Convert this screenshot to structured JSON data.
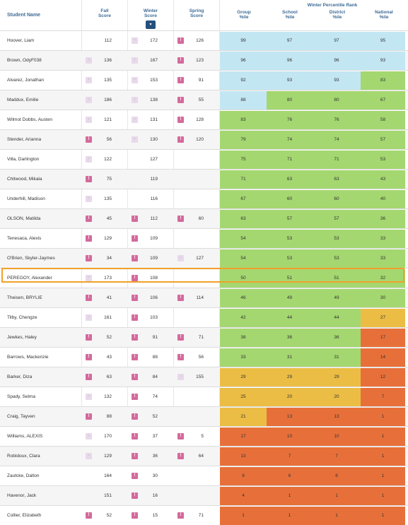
{
  "header": {
    "student_name": "Student Name",
    "fall": [
      "Fall",
      "Score"
    ],
    "winter": [
      "Winter",
      "Score"
    ],
    "spring": [
      "Spring",
      "Score"
    ],
    "percentile_group": "Winter Percentile Rank",
    "group": [
      "Group",
      "%ile"
    ],
    "school": [
      "School",
      "%ile"
    ],
    "district": [
      "District",
      "%ile"
    ],
    "national": [
      "National",
      "%ile"
    ],
    "sort_glyph": "▾"
  },
  "colors": {
    "blue": "#c3e6f3",
    "green": "#a4d770",
    "yellow": "#ecbd45",
    "orange": "#e7703a",
    "red": "#da5a2e",
    "highlight": "#f0a02b"
  },
  "students": [
    {
      "name": "Hoover, Liam",
      "fall_icon": "none",
      "fall": "112",
      "winter_icon": "light",
      "winter": "172",
      "spring_icon": "dark",
      "spring": "126",
      "group": "99",
      "school": "97",
      "district": "97",
      "national": "95",
      "c": [
        "blue",
        "blue",
        "blue",
        "blue"
      ]
    },
    {
      "name": "Brown, OdyF038",
      "fall_icon": "light",
      "fall": "136",
      "winter_icon": "light",
      "winter": "167",
      "spring_icon": "dark",
      "spring": "123",
      "group": "96",
      "school": "96",
      "district": "96",
      "national": "93",
      "c": [
        "blue",
        "blue",
        "blue",
        "blue"
      ]
    },
    {
      "name": "Alvarez, Jonathan",
      "fall_icon": "light",
      "fall": "135",
      "winter_icon": "light",
      "winter": "153",
      "spring_icon": "dark",
      "spring": "91",
      "group": "92",
      "school": "93",
      "district": "93",
      "national": "83",
      "c": [
        "blue",
        "blue",
        "blue",
        "green"
      ]
    },
    {
      "name": "Maddux, Emilie",
      "fall_icon": "light",
      "fall": "186",
      "winter_icon": "light",
      "winter": "138",
      "spring_icon": "dark",
      "spring": "55",
      "group": "88",
      "school": "80",
      "district": "80",
      "national": "67",
      "c": [
        "blue",
        "green",
        "green",
        "green"
      ]
    },
    {
      "name": "Wilmot Dobbs, Austen",
      "fall_icon": "light",
      "fall": "121",
      "winter_icon": "light",
      "winter": "131",
      "spring_icon": "dark",
      "spring": "128",
      "group": "83",
      "school": "76",
      "district": "76",
      "national": "58",
      "c": [
        "green",
        "green",
        "green",
        "green"
      ]
    },
    {
      "name": "Stender, Arianna",
      "fall_icon": "dark",
      "fall": "56",
      "winter_icon": "light",
      "winter": "130",
      "spring_icon": "dark",
      "spring": "120",
      "group": "79",
      "school": "74",
      "district": "74",
      "national": "57",
      "c": [
        "green",
        "green",
        "green",
        "green"
      ]
    },
    {
      "name": "Villa, Darlington",
      "fall_icon": "light",
      "fall": "122",
      "winter_icon": "none",
      "winter": "127",
      "spring_icon": "none",
      "spring": "",
      "group": "75",
      "school": "71",
      "district": "71",
      "national": "53",
      "c": [
        "green",
        "green",
        "green",
        "green"
      ]
    },
    {
      "name": "Chitwood, Mikala",
      "fall_icon": "dark",
      "fall": "75",
      "winter_icon": "none",
      "winter": "119",
      "spring_icon": "none",
      "spring": "",
      "group": "71",
      "school": "63",
      "district": "63",
      "national": "43",
      "c": [
        "green",
        "green",
        "green",
        "green"
      ]
    },
    {
      "name": "Underhill, Madison",
      "fall_icon": "light",
      "fall": "135",
      "winter_icon": "none",
      "winter": "116",
      "spring_icon": "none",
      "spring": "",
      "group": "67",
      "school": "60",
      "district": "60",
      "national": "40",
      "c": [
        "green",
        "green",
        "green",
        "green"
      ]
    },
    {
      "name": "OLSON, Matilda",
      "fall_icon": "dark",
      "fall": "45",
      "winter_icon": "dark",
      "winter": "112",
      "spring_icon": "dark",
      "spring": "60",
      "group": "63",
      "school": "57",
      "district": "57",
      "national": "36",
      "c": [
        "green",
        "green",
        "green",
        "green"
      ]
    },
    {
      "name": "Tenesaca, Alexis",
      "fall_icon": "dark",
      "fall": "129",
      "winter_icon": "dark",
      "winter": "109",
      "spring_icon": "none",
      "spring": "",
      "group": "54",
      "school": "53",
      "district": "53",
      "national": "33",
      "c": [
        "green",
        "green",
        "green",
        "green"
      ]
    },
    {
      "name": "O'Brien, Skyler-Jaymes",
      "fall_icon": "dark",
      "fall": "34",
      "winter_icon": "dark",
      "winter": "109",
      "spring_icon": "light",
      "spring": "127",
      "group": "54",
      "school": "53",
      "district": "53",
      "national": "33",
      "c": [
        "green",
        "green",
        "green",
        "green"
      ]
    },
    {
      "name": "PEREGOY, Alexander",
      "fall_icon": "light",
      "fall": "173",
      "winter_icon": "dark",
      "winter": "108",
      "spring_icon": "none",
      "spring": "",
      "group": "50",
      "school": "51",
      "district": "51",
      "national": "32",
      "c": [
        "green",
        "green",
        "green",
        "green"
      ]
    },
    {
      "name": "Theisen, BRYLIE",
      "fall_icon": "dark",
      "fall": "41",
      "winter_icon": "dark",
      "winter": "106",
      "spring_icon": "dark",
      "spring": "114",
      "group": "46",
      "school": "49",
      "district": "49",
      "national": "30",
      "c": [
        "green",
        "green",
        "green",
        "green"
      ]
    },
    {
      "name": "Tilby, Chengze",
      "fall_icon": "light",
      "fall": "161",
      "winter_icon": "dark",
      "winter": "103",
      "spring_icon": "none",
      "spring": "",
      "group": "42",
      "school": "44",
      "district": "44",
      "national": "27",
      "c": [
        "green",
        "green",
        "green",
        "yellow"
      ]
    },
    {
      "name": "Jewkes, Haley",
      "fall_icon": "dark",
      "fall": "52",
      "winter_icon": "dark",
      "winter": "91",
      "spring_icon": "dark",
      "spring": "71",
      "group": "38",
      "school": "36",
      "district": "36",
      "national": "17",
      "c": [
        "green",
        "green",
        "green",
        "orange"
      ]
    },
    {
      "name": "Barrows, Mackenzie",
      "fall_icon": "dark",
      "fall": "43",
      "winter_icon": "dark",
      "winter": "88",
      "spring_icon": "dark",
      "spring": "56",
      "group": "33",
      "school": "31",
      "district": "31",
      "national": "14",
      "c": [
        "green",
        "green",
        "green",
        "orange"
      ]
    },
    {
      "name": "Barker, Diza",
      "fall_icon": "dark",
      "fall": "63",
      "winter_icon": "dark",
      "winter": "84",
      "spring_icon": "light",
      "spring": "155",
      "group": "29",
      "school": "29",
      "district": "29",
      "national": "12",
      "c": [
        "yellow",
        "yellow",
        "yellow",
        "orange"
      ]
    },
    {
      "name": "Spady, Selma",
      "fall_icon": "light",
      "fall": "132",
      "winter_icon": "dark",
      "winter": "74",
      "spring_icon": "none",
      "spring": "",
      "group": "25",
      "school": "20",
      "district": "20",
      "national": "7",
      "c": [
        "yellow",
        "yellow",
        "yellow",
        "orange"
      ]
    },
    {
      "name": "Craig, Tayven",
      "fall_icon": "dark",
      "fall": "88",
      "winter_icon": "dark",
      "winter": "52",
      "spring_icon": "none",
      "spring": "",
      "group": "21",
      "school": "13",
      "district": "13",
      "national": "1",
      "c": [
        "yellow",
        "orange",
        "orange",
        "orange"
      ]
    },
    {
      "name": "Williams, ALEXIS",
      "fall_icon": "light",
      "fall": "170",
      "winter_icon": "dark",
      "winter": "37",
      "spring_icon": "dark",
      "spring": "5",
      "group": "17",
      "school": "10",
      "district": "10",
      "national": "1",
      "c": [
        "orange",
        "orange",
        "orange",
        "orange"
      ]
    },
    {
      "name": "Robidoux, Clara",
      "fall_icon": "light",
      "fall": "129",
      "winter_icon": "dark",
      "winter": "36",
      "spring_icon": "dark",
      "spring": "64",
      "group": "13",
      "school": "7",
      "district": "7",
      "national": "1",
      "c": [
        "orange",
        "orange",
        "orange",
        "orange"
      ]
    },
    {
      "name": "Zautcke, Dalton",
      "fall_icon": "none",
      "fall": "164",
      "winter_icon": "dark",
      "winter": "30",
      "spring_icon": "none",
      "spring": "",
      "group": "8",
      "school": "6",
      "district": "6",
      "national": "1",
      "c": [
        "orange",
        "orange",
        "orange",
        "orange"
      ]
    },
    {
      "name": "Havenor, Jack",
      "fall_icon": "none",
      "fall": "151",
      "winter_icon": "dark",
      "winter": "16",
      "spring_icon": "none",
      "spring": "",
      "group": "4",
      "school": "1",
      "district": "1",
      "national": "1",
      "c": [
        "orange",
        "orange",
        "orange",
        "orange"
      ]
    },
    {
      "name": "Collier, Elizabeth",
      "fall_icon": "dark",
      "fall": "52",
      "winter_icon": "dark",
      "winter": "15",
      "spring_icon": "dark",
      "spring": "71",
      "group": "1",
      "school": "1",
      "district": "1",
      "national": "1",
      "c": [
        "orange",
        "orange",
        "orange",
        "orange"
      ]
    }
  ],
  "highlighted_student": "Jewkes, Haley"
}
